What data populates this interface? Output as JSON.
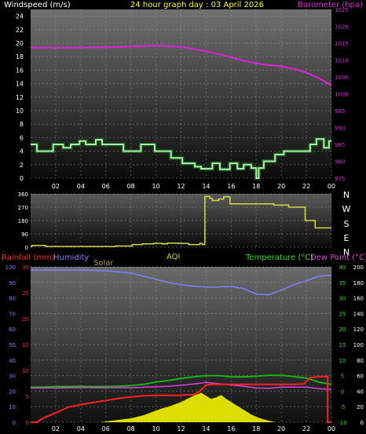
{
  "colors": {
    "background": "#000000",
    "text_white": "#ffffff",
    "title_yellow": "#ffff00",
    "barometer": "#e020e0",
    "windspeed_fill": "#2c6a2c",
    "windspeed_line": "#a8f0a8",
    "direction": "#d8d840",
    "rainfall": "#ff2020",
    "humidity": "#8080ff",
    "solar": "#b0a040",
    "aqi": "#d0d020",
    "temperature": "#10c010",
    "dewpoint": "#e040e0",
    "temp_axis": "#20e020",
    "yellow_fill": "#e8e800"
  },
  "header": {
    "windspeed_label": "Windspeed (m/s)",
    "title": "24 hour graph day : 03 April 2026",
    "barometer_label": "Barometer (hpa)"
  },
  "bottom_header": {
    "rainfall_label": "Rainfall (mm)",
    "humidity_label": "Humidity",
    "solar_label": "Solar",
    "aqi_label": "AQI",
    "temperature_label": "Temperature (°C)",
    "dewpoint_label": "Dew Point (°C)"
  },
  "compass": [
    "N",
    "W",
    "S",
    "E",
    "N"
  ],
  "chart_data": [
    {
      "type": "line",
      "title": "24 hour graph day : 03 April 2026",
      "xlabel": "",
      "ylabel": "Windspeed (m/s)",
      "y2label": "Barometer (hpa)",
      "x_ticks": [
        "02",
        "04",
        "06",
        "08",
        "10",
        "12",
        "14",
        "16",
        "18",
        "20",
        "22",
        "00"
      ],
      "y_ticks": [
        "0",
        "2",
        "4",
        "6",
        "8",
        "10",
        "12",
        "14",
        "16",
        "18",
        "20",
        "22",
        "24"
      ],
      "y2_ticks": [
        "975",
        "980",
        "985",
        "990",
        "995",
        "1000",
        "1005",
        "1010",
        "1015",
        "1020",
        "1025"
      ],
      "ylim": [
        0,
        25
      ],
      "y2lim": [
        975,
        1025
      ],
      "x_range_hours": [
        0,
        24
      ],
      "grid": true,
      "series": [
        {
          "name": "Windspeed (m/s)",
          "x": [
            0,
            0.5,
            0.5,
            1.8,
            1.8,
            2.6,
            2.6,
            3.2,
            3.2,
            3.9,
            3.9,
            4.4,
            4.4,
            5.2,
            5.2,
            5.7,
            5.7,
            7.4,
            7.4,
            8.8,
            8.8,
            9.9,
            9.9,
            11.2,
            11.2,
            12.1,
            12.1,
            13.1,
            13.1,
            13.6,
            13.6,
            14.5,
            14.5,
            15.1,
            15.1,
            15.9,
            15.9,
            16.5,
            16.5,
            17.0,
            17.0,
            17.6,
            17.6,
            18.0,
            18.0,
            18.2,
            18.2,
            18.6,
            18.6,
            19.5,
            19.5,
            20.2,
            20.2,
            22.3,
            22.3,
            22.8,
            22.8,
            23.4,
            23.4,
            23.8,
            23.8,
            24
          ],
          "y": [
            5,
            5,
            4,
            4,
            5,
            5,
            4.5,
            4.5,
            5,
            5,
            5.5,
            5.5,
            5,
            5,
            5.7,
            5.7,
            5,
            5,
            4,
            4,
            5,
            5,
            4,
            4,
            3,
            3,
            2.2,
            2.2,
            1.7,
            1.7,
            1.4,
            1.4,
            2.2,
            2.2,
            1.3,
            1.3,
            2.2,
            2.2,
            1.4,
            1.4,
            2,
            2,
            1.5,
            1.5,
            0,
            0,
            1.5,
            1.5,
            2.5,
            2.5,
            3.5,
            3.5,
            4,
            4,
            5,
            5,
            5.8,
            5.8,
            4.5,
            4.5,
            5.5,
            5.5
          ]
        },
        {
          "name": "Barometer (hpa)",
          "x": [
            0,
            2,
            4,
            6,
            8,
            10,
            11,
            12,
            13,
            14,
            15,
            16,
            17,
            18,
            19,
            20,
            21,
            22,
            23,
            24
          ],
          "y": [
            1013.7,
            1013.6,
            1013.7,
            1013.8,
            1014.0,
            1014.3,
            1014.1,
            1013.9,
            1013.3,
            1012.6,
            1011.8,
            1010.8,
            1009.8,
            1009.0,
            1008.5,
            1008.1,
            1007.4,
            1006.3,
            1004.6,
            1002.5
          ]
        }
      ]
    },
    {
      "type": "line",
      "title": "",
      "xlabel": "",
      "ylabel": "",
      "y_ticks": [
        "0",
        "90",
        "180",
        "270",
        "360"
      ],
      "y2_ticks": [
        "N",
        "W",
        "S",
        "E",
        "N"
      ],
      "ylim": [
        0,
        360
      ],
      "x_range_hours": [
        0,
        24
      ],
      "grid": true,
      "series": [
        {
          "name": "Wind direction",
          "x": [
            0,
            0.1,
            0.1,
            1.2,
            1.2,
            6.8,
            6.8,
            8.1,
            8.1,
            8.9,
            8.9,
            9.8,
            9.8,
            10.5,
            10.5,
            10.9,
            10.9,
            11.8,
            11.8,
            12.6,
            12.6,
            13.5,
            13.5,
            13.7,
            13.7,
            13.9,
            13.9,
            14.3,
            14.3,
            14.5,
            14.5,
            15.0,
            15.0,
            15.4,
            15.4,
            15.9,
            15.9,
            19.4,
            19.4,
            20.6,
            20.6,
            21.9,
            21.9,
            22.7,
            22.7,
            24
          ],
          "y": [
            5,
            5,
            12,
            12,
            5,
            5,
            8,
            8,
            18,
            18,
            22,
            22,
            26,
            26,
            22,
            22,
            28,
            28,
            26,
            26,
            18,
            18,
            26,
            26,
            18,
            18,
            342,
            342,
            330,
            330,
            315,
            315,
            325,
            325,
            340,
            340,
            292,
            292,
            285,
            285,
            270,
            270,
            180,
            180,
            130,
            130
          ]
        }
      ]
    },
    {
      "type": "line",
      "title": "",
      "xlabel": "",
      "ylabel": "Rainfall (mm)",
      "y2label": "Temperature (°C)",
      "x_ticks": [
        "02",
        "04",
        "06",
        "08",
        "10",
        "12",
        "14",
        "16",
        "18",
        "20",
        "22",
        "00"
      ],
      "y_ticks_humidity": [
        "0",
        "10",
        "20",
        "30",
        "40",
        "50",
        "60",
        "70",
        "80",
        "90",
        "100"
      ],
      "y_ticks_rain": [
        "0",
        "5",
        "10",
        "15",
        "20",
        "25",
        "30"
      ],
      "y_ticks_temp": [
        "-10",
        "-5",
        "0",
        "5",
        "10",
        "15",
        "20",
        "25",
        "30",
        "35",
        "40"
      ],
      "y_ticks_solar": [
        "0",
        "20",
        "40",
        "60",
        "80",
        "100",
        "120",
        "140",
        "160",
        "180",
        "200"
      ],
      "x_range_hours": [
        0,
        24
      ],
      "grid": true,
      "series": [
        {
          "name": "Humidity",
          "x": [
            0,
            2,
            4,
            6,
            8,
            9,
            10,
            11,
            12,
            13,
            14,
            15,
            16,
            17,
            18,
            19,
            20,
            21,
            22,
            23,
            24
          ],
          "y": [
            98,
            98,
            98,
            97.5,
            96,
            94,
            92,
            90,
            88.5,
            87.5,
            87,
            87,
            87.5,
            86,
            82.5,
            82,
            85,
            88.5,
            91,
            94,
            94.5
          ]
        },
        {
          "name": "Rainfall (mm)",
          "x": [
            0,
            0.5,
            1,
            2,
            3,
            4,
            5,
            6,
            7,
            8,
            9,
            10,
            11,
            11.5,
            12,
            12.5,
            13,
            13.5,
            14,
            14.5,
            15,
            16,
            17,
            18,
            19,
            20,
            21,
            21.8,
            22.3,
            23,
            23.7,
            23.7,
            24
          ],
          "y": [
            0,
            0,
            0.8,
            1.8,
            2.9,
            3.4,
            3.8,
            4.2,
            4.6,
            4.9,
            5.1,
            5.2,
            5.2,
            5.2,
            5.2,
            5.3,
            5.3,
            6,
            7.2,
            7.3,
            7.3,
            7.3,
            7.3,
            7.3,
            7.3,
            7.3,
            7.3,
            7.4,
            8.6,
            8.8,
            8.8,
            0,
            0
          ]
        },
        {
          "name": "Temperature (°C)",
          "x": [
            0,
            1,
            2,
            3,
            4,
            5,
            6,
            7,
            8,
            9,
            10,
            11,
            12,
            13,
            14,
            15,
            16,
            17,
            18,
            19,
            20,
            21,
            22,
            23,
            24
          ],
          "y": [
            1.3,
            1.3,
            1.5,
            1.5,
            1.6,
            1.5,
            1.5,
            1.6,
            1.8,
            2.2,
            2.9,
            3.4,
            4.1,
            4.6,
            5.0,
            5.0,
            4.6,
            4.6,
            4.8,
            5.1,
            5.1,
            4.7,
            4.2,
            2.9,
            2.2
          ]
        },
        {
          "name": "Dew Point (°C)",
          "x": [
            0,
            2,
            4,
            6,
            8,
            10,
            11,
            12,
            13,
            14,
            15,
            16,
            17,
            18,
            19,
            20,
            21,
            22,
            23,
            24
          ],
          "y": [
            1.0,
            1.0,
            1.1,
            1.1,
            1.1,
            1.4,
            1.6,
            1.9,
            2.3,
            2.8,
            2.4,
            2.0,
            1.6,
            1.0,
            0.9,
            1.3,
            1.3,
            1.3,
            0.8,
            0.5
          ]
        },
        {
          "name": "Solar",
          "x": [
            0,
            5.5,
            6.0,
            6.5,
            7.0,
            7.5,
            8.0,
            8.5,
            9.0,
            9.5,
            10.0,
            10.5,
            11.0,
            11.5,
            12.0,
            12.5,
            13.0,
            13.3,
            13.6,
            14.0,
            14.4,
            14.8,
            15.2,
            15.6,
            16.0,
            16.4,
            16.8,
            17.2,
            17.6,
            18.0,
            18.5,
            19.0,
            19.5,
            24
          ],
          "y": [
            0,
            0,
            1,
            2,
            3,
            4,
            5,
            7,
            9,
            12,
            15,
            18,
            20,
            23,
            26,
            30,
            34,
            36,
            38,
            34,
            30,
            32,
            35,
            30,
            26,
            22,
            18,
            14,
            10,
            7,
            4,
            2,
            0,
            0
          ]
        }
      ]
    }
  ]
}
